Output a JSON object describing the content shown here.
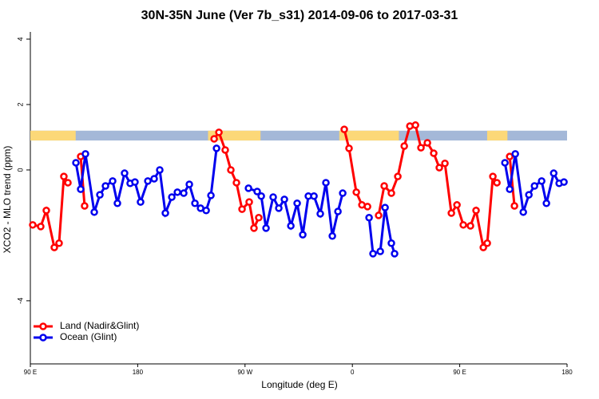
{
  "chart_data": {
    "type": "line",
    "title": "30N-35N June (Ver 7b_s31)   2014-09-06 to 2017-03-31",
    "x_label": "Longitude (deg E)",
    "y_label": "XCO2 - MLO trend (ppm)",
    "xlim": [
      90,
      540
    ],
    "xticks": [
      {
        "value": 90,
        "label": "90 E"
      },
      180,
      {
        "value": 270,
        "label": "90 W"
      },
      {
        "value": 360,
        "label": "0"
      },
      {
        "value": 450,
        "label": "90 E"
      },
      {
        "value": 540,
        "label": "180"
      }
    ],
    "ylim": [
      -5.93,
      4.22
    ],
    "yticks": [
      4,
      2,
      0,
      -4
    ],
    "legend": "bottomleft",
    "mask": {
      "ylim": [
        0.9,
        1.2
      ],
      "ocean_color": "#a4b8d8",
      "land_color": "#fcd878",
      "land": [
        [
          90,
          128
        ],
        [
          239,
          283
        ],
        [
          349,
          399
        ],
        [
          473,
          490
        ]
      ]
    },
    "series": [
      {
        "name": "Land (Nadir&Glint)",
        "color": "#ff0000",
        "x": [
          92.0,
          98.7,
          103.4,
          110.1,
          114.1,
          118.1,
          121.5,
          127,
          132.2,
          135.5,
          190,
          244.1,
          248.1,
          253.4,
          258.1,
          262.8,
          267.5,
          273.5,
          277.5,
          281.5,
          320,
          353.2,
          357.2,
          363.3,
          368.0,
          372.7,
          377,
          382.0,
          386.7,
          392.7,
          398.1,
          403.5,
          408.2,
          412.9,
          417.5,
          422.9,
          428.2,
          432.9,
          437.6,
          443.0,
          447.7,
          453.0,
          459.0,
          463.7,
          469.8,
          473.1,
          477.8,
          481.2,
          487,
          491.9,
          495.9
        ],
        "values": [
          -1.68,
          -1.73,
          -1.24,
          -2.37,
          -2.24,
          -0.2,
          -0.39,
          null,
          0.41,
          -1.1,
          null,
          0.95,
          1.15,
          0.61,
          0,
          -0.39,
          -1.2,
          -0.98,
          -1.78,
          -1.46,
          null,
          1.24,
          0.66,
          -0.68,
          -1.07,
          -1.12,
          null,
          -1.39,
          -0.49,
          -0.71,
          -0.2,
          0.73,
          1.34,
          1.37,
          0.68,
          0.83,
          0.51,
          0.07,
          0.2,
          -1.32,
          -1.07,
          -1.68,
          -1.71,
          -1.24,
          -2.37,
          -2.24,
          -0.2,
          -0.39,
          null,
          0.41,
          -1.1
        ]
      },
      {
        "name": "Ocean (Glint)",
        "color": "#0000ee",
        "x": [
          128.2,
          132.2,
          136.2,
          143.6,
          148.3,
          153.0,
          159.0,
          163.0,
          169.0,
          173.7,
          177.7,
          182.4,
          188.5,
          193.8,
          198.5,
          203.2,
          208.6,
          213.3,
          218.6,
          223.3,
          228.0,
          232.7,
          237.4,
          241.4,
          246.1,
          260,
          272.9,
          280.2,
          283.6,
          287.6,
          293.6,
          298.3,
          303.0,
          308.4,
          313.7,
          318.4,
          323.1,
          327.8,
          333.1,
          337.8,
          343.2,
          347.9,
          351.9,
          363,
          374.0,
          377.3,
          383.4,
          387.4,
          392.7,
          395.4,
          440,
          487.9,
          491.9,
          496.6,
          503.3,
          508.0,
          512.7,
          518.7,
          522.7,
          528.8,
          533.4,
          537.4
        ],
        "values": [
          0.22,
          -0.59,
          0.49,
          -1.29,
          -0.76,
          -0.49,
          -0.34,
          -1.02,
          -0.1,
          -0.41,
          -0.37,
          -0.98,
          -0.34,
          -0.27,
          0,
          -1.32,
          -0.83,
          -0.68,
          -0.71,
          -0.44,
          -1.02,
          -1.17,
          -1.24,
          -0.78,
          0.66,
          null,
          -0.56,
          -0.66,
          -0.8,
          -1.78,
          -0.83,
          -1.17,
          -0.9,
          -1.71,
          -1.02,
          -1.98,
          -0.8,
          -0.8,
          -1.34,
          -0.39,
          -2.02,
          -1.27,
          -0.71,
          null,
          -1.46,
          -2.56,
          -2.49,
          -1.15,
          -2.24,
          -2.56,
          null,
          0.22,
          -0.59,
          0.49,
          -1.29,
          -0.76,
          -0.49,
          -0.34,
          -1.02,
          -0.1,
          -0.41,
          -0.37
        ]
      }
    ]
  }
}
